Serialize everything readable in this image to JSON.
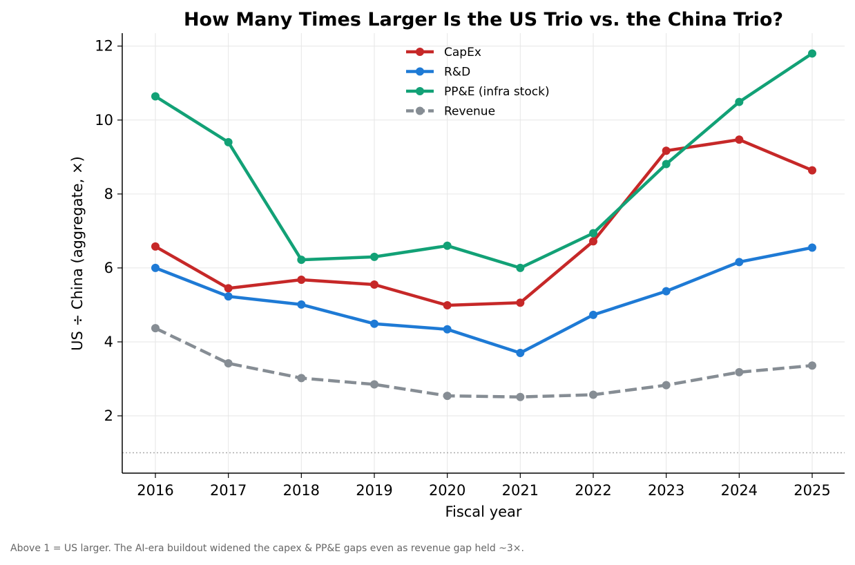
{
  "chart_data": {
    "type": "line",
    "title": "How Many Times Larger Is the US Trio vs. the China Trio?",
    "xlabel": "Fiscal year",
    "ylabel": "US ÷ China (aggregate, ×)",
    "x": [
      "2016",
      "2017",
      "2018",
      "2019",
      "2020",
      "2021",
      "2022",
      "2023",
      "2024",
      "2025"
    ],
    "ylim": [
      0.45,
      12.35
    ],
    "yticks": [
      2,
      4,
      6,
      8,
      10,
      12
    ],
    "grid": true,
    "legend_position": "top-center",
    "reference_line": {
      "y": 1,
      "style": "dotted",
      "color": "#aaaaaa"
    },
    "series": [
      {
        "name": "CapEx",
        "color": "#c62828",
        "dashed": false,
        "values": [
          6.58,
          5.45,
          5.68,
          5.55,
          4.99,
          5.06,
          6.72,
          9.17,
          9.47,
          8.64
        ]
      },
      {
        "name": "R&D",
        "color": "#1e7ad5",
        "dashed": false,
        "values": [
          6.0,
          5.23,
          5.01,
          4.49,
          4.34,
          3.7,
          4.73,
          5.37,
          6.16,
          6.55
        ]
      },
      {
        "name": "PP&E (infra stock)",
        "color": "#12a176",
        "dashed": false,
        "values": [
          10.64,
          9.4,
          6.22,
          6.3,
          6.6,
          6.0,
          6.94,
          8.81,
          10.49,
          11.8
        ]
      },
      {
        "name": "Revenue",
        "color": "#868d94",
        "dashed": true,
        "values": [
          4.37,
          3.42,
          3.02,
          2.85,
          2.54,
          2.51,
          2.57,
          2.83,
          3.18,
          3.36
        ]
      }
    ],
    "footnote": "Above 1 = US larger. The AI-era buildout widened the capex & PP&E gaps even as revenue gap held ~3×."
  }
}
